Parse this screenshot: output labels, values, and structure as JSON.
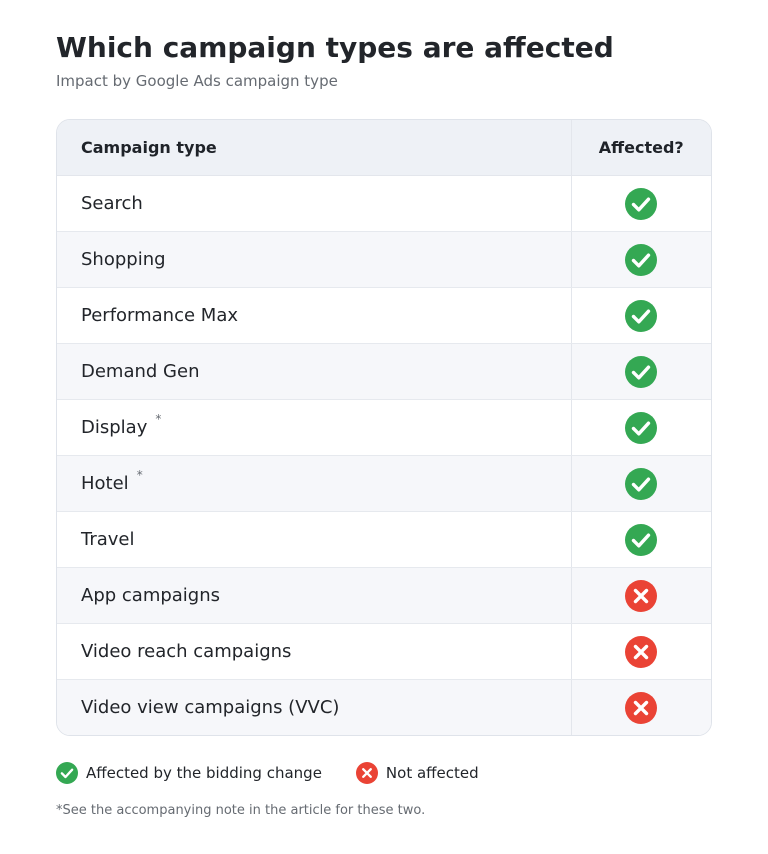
{
  "header": {
    "title": "Which campaign types are affected",
    "subtitle": "Impact by Google Ads campaign type"
  },
  "table": {
    "columns": [
      "Campaign type",
      "Affected?"
    ],
    "rows": [
      {
        "type": "Search",
        "affected": true,
        "note": ""
      },
      {
        "type": "Shopping",
        "affected": true,
        "note": ""
      },
      {
        "type": "Performance Max",
        "affected": true,
        "note": ""
      },
      {
        "type": "Demand Gen",
        "affected": true,
        "note": ""
      },
      {
        "type": "Display",
        "affected": true,
        "note": "*"
      },
      {
        "type": "Hotel",
        "affected": true,
        "note": "*"
      },
      {
        "type": "Travel",
        "affected": true,
        "note": ""
      },
      {
        "type": "App campaigns",
        "affected": false,
        "note": ""
      },
      {
        "type": "Video reach campaigns",
        "affected": false,
        "note": ""
      },
      {
        "type": "Video view campaigns (VVC)",
        "affected": false,
        "note": ""
      }
    ]
  },
  "legend": {
    "affected_label": "Affected by the bidding change",
    "not_affected_label": "Not affected",
    "affected_icon": "check-circle-icon",
    "not_affected_icon": "x-circle-icon"
  },
  "footnote": "*See the accompanying note in the article for these two.",
  "colors": {
    "affected": "#34a853",
    "not_affected": "#ea4335",
    "header_bg": "#eef1f6",
    "alt_row_bg": "#f6f7fa"
  }
}
